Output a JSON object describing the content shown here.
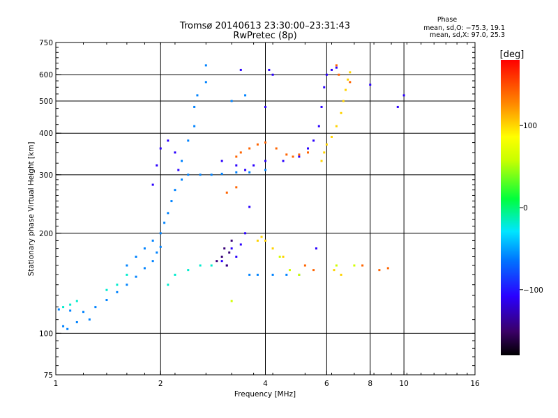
{
  "chart_data": {
    "type": "scatter",
    "title": "Tromsø 20140613 23:30:00–23:31:43",
    "subtitle": "RwPretec (8p)",
    "xlabel": "Frequency [MHz]",
    "ylabel": "Stationary phase Virtual Height [km]",
    "x_scale": "log2",
    "y_scale": "log",
    "xlim": [
      1,
      16
    ],
    "ylim": [
      75,
      750
    ],
    "x_ticks": [
      1,
      2,
      4,
      6,
      8,
      10,
      16
    ],
    "y_ticks": [
      75,
      100,
      200,
      300,
      400,
      500,
      600,
      750
    ],
    "x_gridlines": [
      2,
      4,
      6,
      8,
      10
    ],
    "y_gridlines": [
      100,
      200,
      300,
      400,
      500,
      600
    ],
    "grid": true,
    "phase_stats": {
      "heading": "Phase",
      "line1": "mean, sd,O: −75.3, 19.1",
      "line2": "mean, sd,X:  97.0, 25.3"
    },
    "colorbar": {
      "label": "[deg]",
      "min": -180,
      "max": 180,
      "ticks": [
        100,
        0,
        -100
      ],
      "tick_labels": [
        "100",
        "0",
        "−100"
      ]
    },
    "series": [
      {
        "color_phase": -60,
        "points": [
          [
            1.02,
            118
          ],
          [
            1.1,
            117
          ],
          [
            1.2,
            116
          ],
          [
            1.3,
            120
          ],
          [
            1.4,
            126
          ],
          [
            1.5,
            133
          ],
          [
            1.6,
            140
          ],
          [
            1.7,
            148
          ],
          [
            1.8,
            157
          ],
          [
            1.9,
            165
          ],
          [
            1.95,
            175
          ],
          [
            2.0,
            182
          ],
          [
            1.6,
            160
          ],
          [
            1.7,
            170
          ],
          [
            1.8,
            180
          ],
          [
            1.9,
            190
          ],
          [
            2.0,
            200
          ],
          [
            2.05,
            215
          ],
          [
            2.1,
            230
          ],
          [
            2.15,
            250
          ],
          [
            2.2,
            270
          ],
          [
            2.3,
            290
          ],
          [
            2.4,
            300
          ],
          [
            2.6,
            300
          ],
          [
            2.8,
            300
          ],
          [
            3.0,
            302
          ],
          [
            3.3,
            305
          ],
          [
            3.6,
            305
          ],
          [
            4.0,
            310
          ],
          [
            2.3,
            330
          ],
          [
            2.4,
            380
          ],
          [
            2.5,
            420
          ],
          [
            2.5,
            480
          ],
          [
            2.55,
            520
          ],
          [
            2.7,
            570
          ],
          [
            2.7,
            640
          ],
          [
            3.6,
            150
          ],
          [
            3.8,
            150
          ],
          [
            4.2,
            150
          ],
          [
            4.6,
            150
          ],
          [
            5.0,
            150
          ],
          [
            1.05,
            105
          ],
          [
            1.08,
            103
          ],
          [
            1.15,
            108
          ],
          [
            1.25,
            110
          ],
          [
            3.2,
            500
          ],
          [
            3.5,
            520
          ]
        ]
      },
      {
        "color_phase": -110,
        "points": [
          [
            1.9,
            280
          ],
          [
            1.95,
            320
          ],
          [
            2.0,
            360
          ],
          [
            2.1,
            380
          ],
          [
            2.2,
            350
          ],
          [
            2.25,
            310
          ],
          [
            3.0,
            330
          ],
          [
            3.3,
            320
          ],
          [
            3.5,
            310
          ],
          [
            3.7,
            320
          ],
          [
            4.0,
            330
          ],
          [
            4.5,
            330
          ],
          [
            5.0,
            340
          ],
          [
            5.3,
            360
          ],
          [
            5.5,
            380
          ],
          [
            5.7,
            420
          ],
          [
            5.8,
            480
          ],
          [
            5.9,
            550
          ],
          [
            6.0,
            600
          ],
          [
            6.2,
            620
          ],
          [
            6.4,
            630
          ],
          [
            3.2,
            180
          ],
          [
            3.4,
            185
          ],
          [
            3.5,
            200
          ],
          [
            3.6,
            240
          ],
          [
            3.3,
            170
          ],
          [
            3.1,
            160
          ],
          [
            3.0,
            165
          ],
          [
            4.0,
            480
          ],
          [
            4.2,
            600
          ],
          [
            4.1,
            620
          ],
          [
            3.4,
            620
          ],
          [
            8.0,
            560
          ],
          [
            10.0,
            520
          ],
          [
            9.6,
            480
          ],
          [
            5.6,
            180
          ]
        ]
      },
      {
        "color_phase": -145,
        "points": [
          [
            3.0,
            170
          ],
          [
            3.05,
            180
          ],
          [
            3.1,
            160
          ],
          [
            3.15,
            175
          ],
          [
            2.9,
            165
          ],
          [
            3.2,
            190
          ]
        ]
      },
      {
        "color_phase": 100,
        "points": [
          [
            5.8,
            330
          ],
          [
            5.9,
            350
          ],
          [
            6.0,
            370
          ],
          [
            6.2,
            390
          ],
          [
            6.4,
            420
          ],
          [
            6.6,
            460
          ],
          [
            6.7,
            500
          ],
          [
            6.8,
            540
          ],
          [
            6.9,
            580
          ],
          [
            7.0,
            610
          ],
          [
            3.8,
            190
          ],
          [
            3.9,
            195
          ],
          [
            4.0,
            190
          ],
          [
            4.2,
            180
          ],
          [
            4.5,
            170
          ],
          [
            6.3,
            155
          ],
          [
            6.6,
            150
          ]
        ]
      },
      {
        "color_phase": 140,
        "points": [
          [
            3.3,
            340
          ],
          [
            3.4,
            350
          ],
          [
            3.6,
            360
          ],
          [
            3.8,
            370
          ],
          [
            4.0,
            375
          ],
          [
            4.3,
            360
          ],
          [
            4.6,
            345
          ],
          [
            4.8,
            340
          ],
          [
            5.0,
            345
          ],
          [
            5.3,
            350
          ],
          [
            3.1,
            265
          ],
          [
            3.3,
            275
          ],
          [
            6.4,
            640
          ],
          [
            6.5,
            600
          ],
          [
            7.0,
            570
          ],
          [
            5.2,
            160
          ],
          [
            5.5,
            155
          ],
          [
            7.6,
            160
          ],
          [
            8.5,
            155
          ],
          [
            9.0,
            157
          ]
        ]
      },
      {
        "color_phase": 60,
        "points": [
          [
            4.7,
            155
          ],
          [
            5.0,
            150
          ],
          [
            6.4,
            160
          ],
          [
            7.2,
            160
          ],
          [
            4.4,
            170
          ],
          [
            3.2,
            125
          ]
        ]
      },
      {
        "color_phase": -20,
        "points": [
          [
            1.4,
            135
          ],
          [
            1.5,
            140
          ],
          [
            1.6,
            150
          ],
          [
            2.1,
            140
          ],
          [
            2.2,
            150
          ],
          [
            2.4,
            155
          ],
          [
            2.6,
            160
          ],
          [
            2.8,
            160
          ],
          [
            1.15,
            125
          ],
          [
            1.1,
            122
          ],
          [
            1.05,
            120
          ]
        ]
      }
    ]
  }
}
